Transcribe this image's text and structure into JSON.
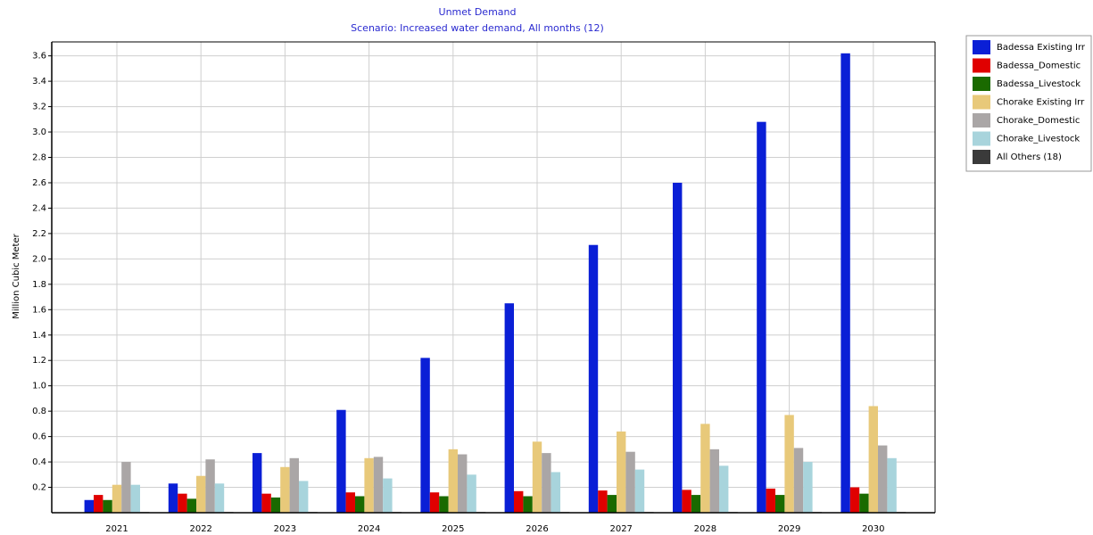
{
  "chart_data": {
    "type": "bar",
    "title": "Unmet Demand",
    "subtitle": "Scenario: Increased water demand, All months (12)",
    "y_label": "Million Cubic Meter",
    "categories": [
      "2021",
      "2022",
      "2023",
      "2024",
      "2025",
      "2026",
      "2027",
      "2028",
      "2029",
      "2030"
    ],
    "series": [
      {
        "name": "Badessa Existing Irr",
        "color": "#0a1fd6",
        "values": [
          0.1,
          0.23,
          0.47,
          0.81,
          1.22,
          1.65,
          2.11,
          2.6,
          3.08,
          3.62
        ]
      },
      {
        "name": "Badessa_Domestic",
        "color": "#e00000",
        "values": [
          0.14,
          0.15,
          0.15,
          0.16,
          0.16,
          0.17,
          0.175,
          0.18,
          0.19,
          0.2
        ]
      },
      {
        "name": "Badessa_Livestock",
        "color": "#1a6a00",
        "values": [
          0.1,
          0.11,
          0.12,
          0.13,
          0.13,
          0.13,
          0.14,
          0.14,
          0.14,
          0.15
        ]
      },
      {
        "name": "Chorake Existing Irr",
        "color": "#e8c97a",
        "values": [
          0.22,
          0.29,
          0.36,
          0.43,
          0.5,
          0.56,
          0.64,
          0.7,
          0.77,
          0.84
        ]
      },
      {
        "name": "Chorake_Domestic",
        "color": "#aaa6a6",
        "values": [
          0.4,
          0.42,
          0.43,
          0.44,
          0.46,
          0.47,
          0.48,
          0.5,
          0.51,
          0.53
        ]
      },
      {
        "name": "Chorake_Livestock",
        "color": "#a8d4dc",
        "values": [
          0.22,
          0.23,
          0.25,
          0.27,
          0.3,
          0.32,
          0.34,
          0.37,
          0.4,
          0.43
        ]
      },
      {
        "name": "All Others (18)",
        "color": "#3a3a3a",
        "values": [
          0.005,
          0.005,
          0.005,
          0.005,
          0.005,
          0.005,
          0.005,
          0.005,
          0.005,
          0.005
        ]
      }
    ],
    "ylim": [
      0,
      3.71
    ],
    "yticks": [
      0.2,
      0.4,
      0.6,
      0.8,
      {
        "value": 1,
        "label": "1.0"
      },
      1.2,
      1.4,
      1.6,
      1.8,
      {
        "value": 2,
        "label": "2.0"
      },
      2.2,
      2.4,
      2.6,
      2.8,
      {
        "value": 3,
        "label": "3.0"
      },
      3.2,
      3.4,
      3.6
    ],
    "grid": true,
    "legend": "right"
  }
}
